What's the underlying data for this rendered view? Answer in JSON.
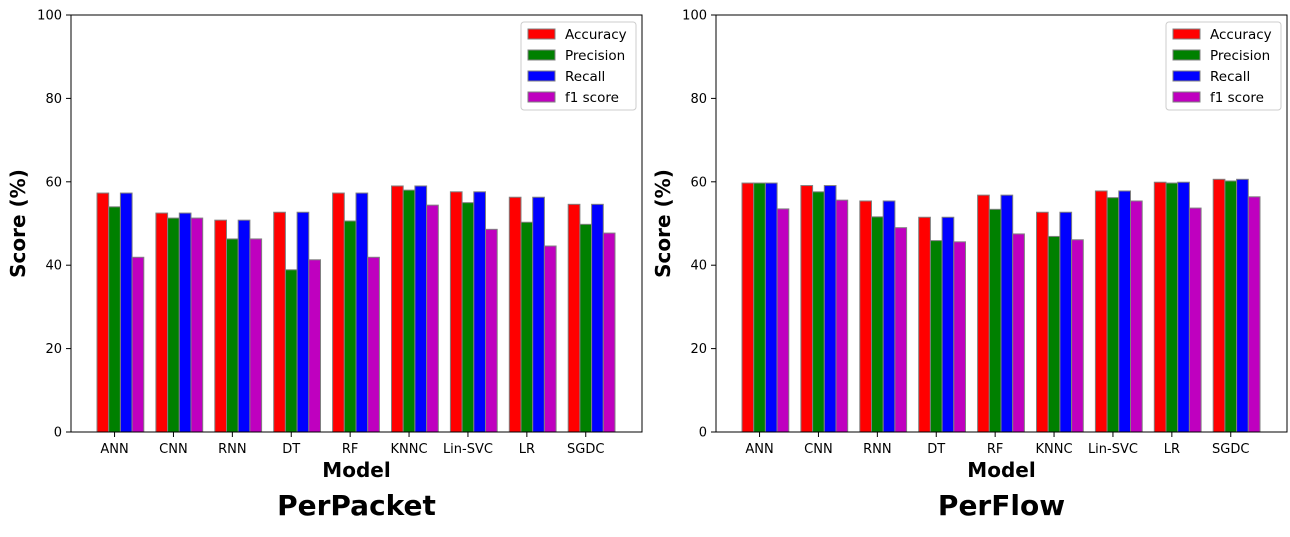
{
  "colors": {
    "Accuracy": "#ff0000",
    "Precision": "#008000",
    "Recall": "#0000ff",
    "f1 score": "#bf00bf",
    "bar_edge": "#808080"
  },
  "chart_data": [
    {
      "type": "bar",
      "title": "PerPacket",
      "xlabel": "Model",
      "ylabel": "Score (%)",
      "ylim": [
        0,
        100
      ],
      "yticks": [
        0,
        20,
        40,
        60,
        80,
        100
      ],
      "grid": false,
      "legend_position": "top-right",
      "categories": [
        "ANN",
        "CNN",
        "RNN",
        "DT",
        "RF",
        "KNNC",
        "Lin-SVC",
        "LR",
        "SGDC"
      ],
      "series": [
        {
          "name": "Accuracy",
          "values": [
            57.3,
            52.5,
            50.8,
            52.7,
            57.3,
            59.0,
            57.6,
            56.3,
            54.6
          ]
        },
        {
          "name": "Precision",
          "values": [
            54.0,
            51.3,
            46.3,
            38.9,
            50.6,
            58.0,
            55.0,
            50.3,
            49.8
          ]
        },
        {
          "name": "Recall",
          "values": [
            57.3,
            52.5,
            50.8,
            52.7,
            57.3,
            59.0,
            57.6,
            56.3,
            54.6
          ]
        },
        {
          "name": "f1 score",
          "values": [
            41.9,
            51.3,
            46.3,
            41.3,
            41.9,
            54.4,
            48.6,
            44.6,
            47.7
          ]
        }
      ]
    },
    {
      "type": "bar",
      "title": "PerFlow",
      "xlabel": "Model",
      "ylabel": "Score (%)",
      "ylim": [
        0,
        100
      ],
      "yticks": [
        0,
        20,
        40,
        60,
        80,
        100
      ],
      "grid": false,
      "legend_position": "top-right",
      "categories": [
        "ANN",
        "CNN",
        "RNN",
        "DT",
        "RF",
        "KNNC",
        "Lin-SVC",
        "LR",
        "SGDC"
      ],
      "series": [
        {
          "name": "Accuracy",
          "values": [
            59.7,
            59.1,
            55.4,
            51.5,
            56.8,
            52.7,
            57.8,
            59.9,
            60.6
          ]
        },
        {
          "name": "Precision",
          "values": [
            59.7,
            57.6,
            51.6,
            45.9,
            53.4,
            46.9,
            56.2,
            59.7,
            60.2
          ]
        },
        {
          "name": "Recall",
          "values": [
            59.7,
            59.1,
            55.4,
            51.5,
            56.8,
            52.7,
            57.8,
            59.9,
            60.6
          ]
        },
        {
          "name": "f1 score",
          "values": [
            53.5,
            55.6,
            49.0,
            45.6,
            47.5,
            46.1,
            55.4,
            53.7,
            56.4
          ]
        }
      ]
    }
  ]
}
